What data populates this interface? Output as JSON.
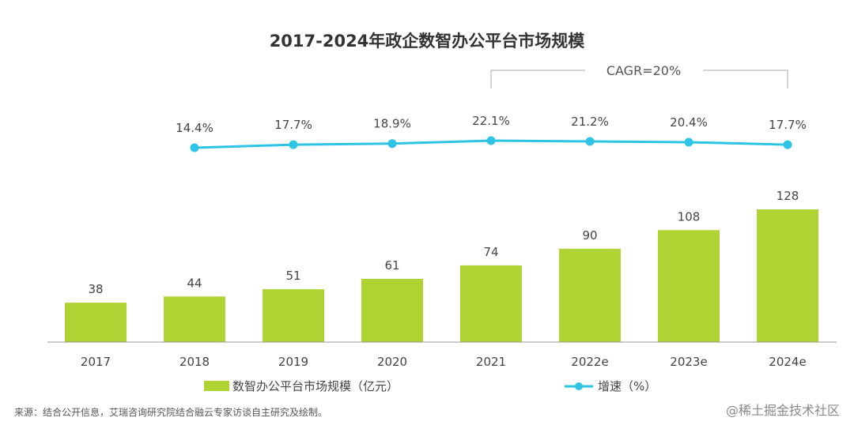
{
  "chart_data": {
    "type": "bar+line",
    "title": "2017-2024年政企数智办公平台市场规模",
    "categories": [
      "2017",
      "2018",
      "2019",
      "2020",
      "2021",
      "2022e",
      "2023e",
      "2024e"
    ],
    "series": [
      {
        "name": "数智办公平台市场规模（亿元）",
        "type": "bar",
        "color": "#b0d334",
        "values": [
          38,
          44,
          51,
          61,
          74,
          90,
          108,
          128
        ]
      },
      {
        "name": "增速（%）",
        "type": "line",
        "color": "#2ec4e6",
        "values": [
          null,
          14.4,
          17.7,
          18.9,
          22.1,
          21.2,
          20.4,
          17.7
        ],
        "labels": [
          "",
          "14.4%",
          "17.7%",
          "18.9%",
          "22.1%",
          "21.2%",
          "20.4%",
          "17.7%"
        ]
      }
    ],
    "annotation": "CAGR=20%",
    "legend": "bottom",
    "grid": false
  },
  "source": "来源：结合公开信息，艾瑞咨询研究院结合融云专家访谈自主研究及绘制。",
  "watermark": "@稀土掘金技术社区"
}
